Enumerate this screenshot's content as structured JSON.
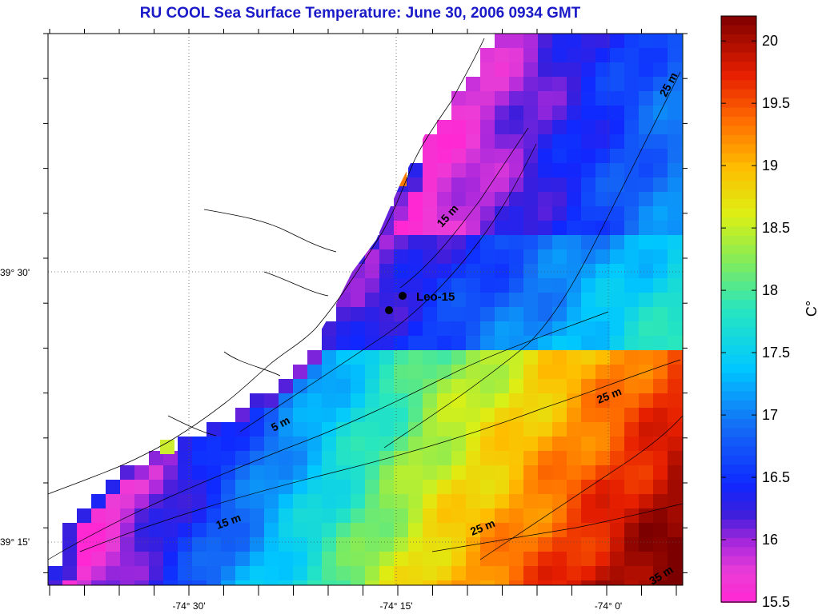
{
  "title": "RU COOL  Sea Surface Temperature:  June 30, 2006 0934 GMT",
  "x_ticks": [
    "-74° 30'",
    "-74° 15'",
    "-74° 0'"
  ],
  "y_ticks": [
    "39° 30'",
    "39° 15'"
  ],
  "colorbar": {
    "unit": "C°",
    "min": 15.5,
    "max": 20.2,
    "ticks": [
      "20",
      "19.5",
      "19",
      "18.5",
      "18",
      "17.5",
      "17",
      "16.5",
      "16",
      "15.5"
    ]
  },
  "station": {
    "label": "Leo-15"
  },
  "contours": [
    "25 m",
    "15 m",
    "5 m",
    "25 m",
    "15 m",
    "25 m",
    "35 m"
  ],
  "colors": {
    "title": "#1a1ac8",
    "gridline": "#555555",
    "land": "#ffffff"
  }
}
